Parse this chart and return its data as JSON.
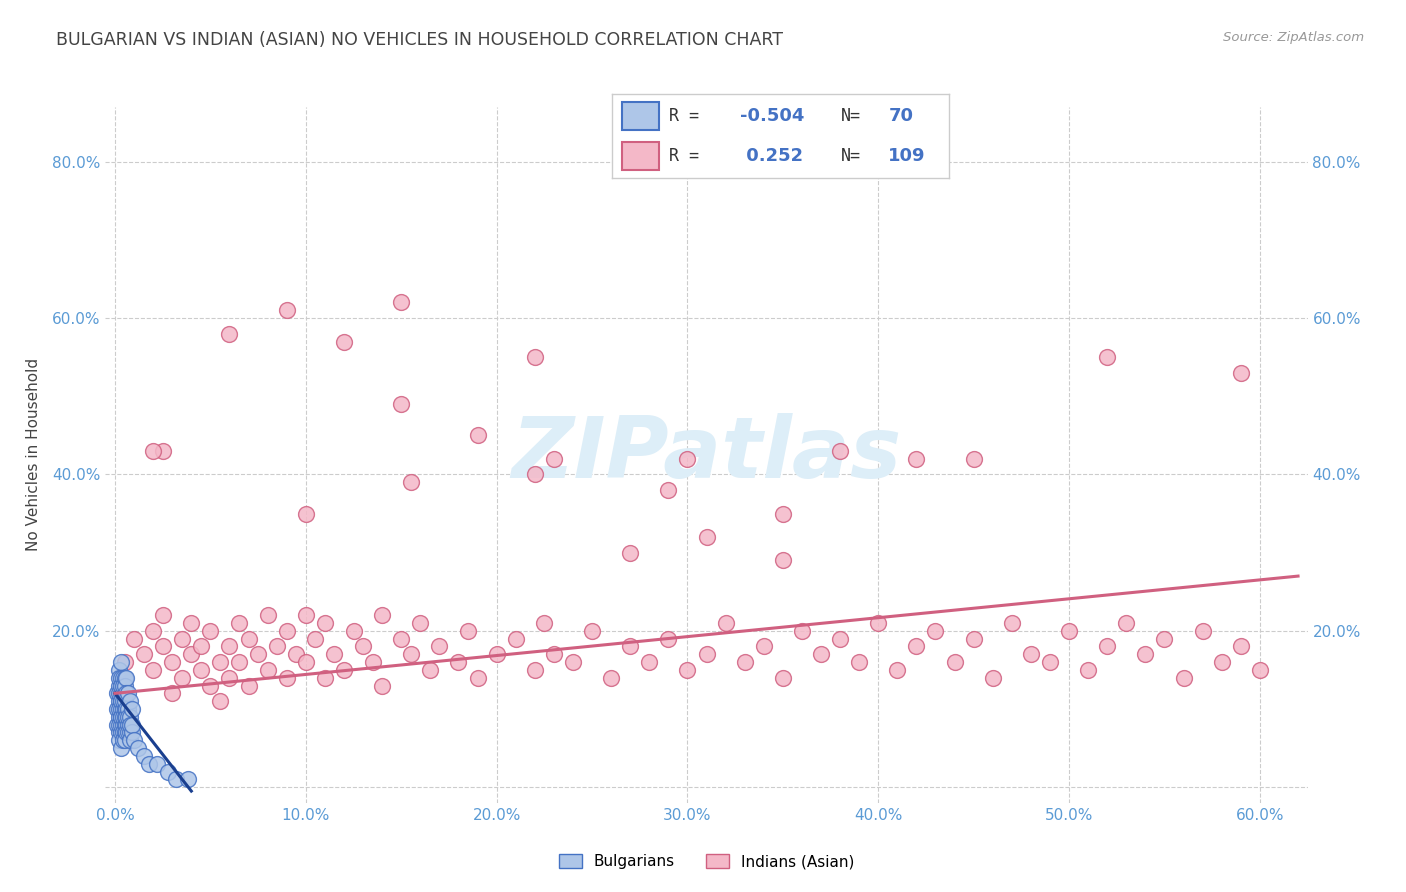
{
  "title": "BULGARIAN VS INDIAN (ASIAN) NO VEHICLES IN HOUSEHOLD CORRELATION CHART",
  "source": "Source: ZipAtlas.com",
  "ylabel": "No Vehicles in Household",
  "bg_color": "#ffffff",
  "grid_color": "#cccccc",
  "title_color": "#444444",
  "tick_label_color": "#5b9bd5",
  "xmin": -0.005,
  "xmax": 0.625,
  "ymin": -0.02,
  "ymax": 0.87,
  "xticks": [
    0.0,
    0.1,
    0.2,
    0.3,
    0.4,
    0.5,
    0.6
  ],
  "xtick_labels": [
    "0.0%",
    "10.0%",
    "20.0%",
    "30.0%",
    "40.0%",
    "50.0%",
    "60.0%"
  ],
  "yticks": [
    0.0,
    0.2,
    0.4,
    0.6,
    0.8
  ],
  "ytick_labels": [
    "",
    "20.0%",
    "40.0%",
    "60.0%",
    "80.0%"
  ],
  "legend_r_bul": "-0.504",
  "legend_n_bul": "70",
  "legend_r_ind": "0.252",
  "legend_n_ind": "109",
  "bul_face": "#aec6e8",
  "bul_edge": "#4472c4",
  "ind_face": "#f4b8c8",
  "ind_edge": "#d06080",
  "bul_line": "#1a3f8f",
  "ind_line": "#d06080",
  "watermark": "ZIPatlas",
  "watermark_color": "#ddeef8",
  "marker_size": 130,
  "bul_x": [
    0.001,
    0.001,
    0.001,
    0.002,
    0.002,
    0.002,
    0.002,
    0.002,
    0.002,
    0.002,
    0.002,
    0.002,
    0.002,
    0.003,
    0.003,
    0.003,
    0.003,
    0.003,
    0.003,
    0.003,
    0.003,
    0.003,
    0.003,
    0.003,
    0.003,
    0.004,
    0.004,
    0.004,
    0.004,
    0.004,
    0.004,
    0.004,
    0.004,
    0.004,
    0.005,
    0.005,
    0.005,
    0.005,
    0.005,
    0.005,
    0.005,
    0.005,
    0.005,
    0.006,
    0.006,
    0.006,
    0.006,
    0.006,
    0.006,
    0.007,
    0.007,
    0.007,
    0.007,
    0.007,
    0.008,
    0.008,
    0.008,
    0.008,
    0.008,
    0.009,
    0.009,
    0.009,
    0.01,
    0.012,
    0.015,
    0.018,
    0.022,
    0.028,
    0.032,
    0.038
  ],
  "bul_y": [
    0.1,
    0.08,
    0.12,
    0.15,
    0.13,
    0.11,
    0.09,
    0.07,
    0.12,
    0.14,
    0.08,
    0.1,
    0.06,
    0.16,
    0.12,
    0.09,
    0.11,
    0.07,
    0.14,
    0.08,
    0.13,
    0.1,
    0.05,
    0.09,
    0.11,
    0.14,
    0.1,
    0.12,
    0.08,
    0.09,
    0.13,
    0.07,
    0.11,
    0.06,
    0.14,
    0.1,
    0.12,
    0.08,
    0.09,
    0.13,
    0.07,
    0.11,
    0.06,
    0.14,
    0.1,
    0.08,
    0.12,
    0.07,
    0.09,
    0.12,
    0.1,
    0.08,
    0.07,
    0.09,
    0.11,
    0.07,
    0.09,
    0.06,
    0.08,
    0.1,
    0.07,
    0.08,
    0.06,
    0.05,
    0.04,
    0.03,
    0.03,
    0.02,
    0.01,
    0.01
  ],
  "ind_x": [
    0.005,
    0.01,
    0.015,
    0.02,
    0.02,
    0.025,
    0.025,
    0.03,
    0.03,
    0.035,
    0.035,
    0.04,
    0.04,
    0.045,
    0.045,
    0.05,
    0.05,
    0.055,
    0.055,
    0.06,
    0.06,
    0.065,
    0.065,
    0.07,
    0.07,
    0.075,
    0.08,
    0.08,
    0.085,
    0.09,
    0.09,
    0.095,
    0.1,
    0.1,
    0.105,
    0.11,
    0.11,
    0.115,
    0.12,
    0.125,
    0.13,
    0.135,
    0.14,
    0.14,
    0.15,
    0.155,
    0.16,
    0.165,
    0.17,
    0.18,
    0.185,
    0.19,
    0.2,
    0.21,
    0.22,
    0.225,
    0.23,
    0.24,
    0.25,
    0.26,
    0.27,
    0.28,
    0.29,
    0.3,
    0.31,
    0.32,
    0.33,
    0.34,
    0.35,
    0.36,
    0.37,
    0.38,
    0.39,
    0.4,
    0.41,
    0.42,
    0.43,
    0.44,
    0.45,
    0.46,
    0.47,
    0.48,
    0.49,
    0.5,
    0.51,
    0.52,
    0.53,
    0.54,
    0.55,
    0.56,
    0.57,
    0.58,
    0.59,
    0.6,
    0.025,
    0.06,
    0.09,
    0.12,
    0.155,
    0.19,
    0.23,
    0.27,
    0.31,
    0.35,
    0.15,
    0.22,
    0.3,
    0.38,
    0.45
  ],
  "ind_y": [
    0.16,
    0.19,
    0.17,
    0.2,
    0.15,
    0.18,
    0.22,
    0.16,
    0.12,
    0.19,
    0.14,
    0.17,
    0.21,
    0.15,
    0.18,
    0.13,
    0.2,
    0.16,
    0.11,
    0.18,
    0.14,
    0.21,
    0.16,
    0.19,
    0.13,
    0.17,
    0.22,
    0.15,
    0.18,
    0.2,
    0.14,
    0.17,
    0.22,
    0.16,
    0.19,
    0.14,
    0.21,
    0.17,
    0.15,
    0.2,
    0.18,
    0.16,
    0.22,
    0.13,
    0.19,
    0.17,
    0.21,
    0.15,
    0.18,
    0.16,
    0.2,
    0.14,
    0.17,
    0.19,
    0.15,
    0.21,
    0.17,
    0.16,
    0.2,
    0.14,
    0.18,
    0.16,
    0.19,
    0.15,
    0.17,
    0.21,
    0.16,
    0.18,
    0.14,
    0.2,
    0.17,
    0.19,
    0.16,
    0.21,
    0.15,
    0.18,
    0.2,
    0.16,
    0.19,
    0.14,
    0.21,
    0.17,
    0.16,
    0.2,
    0.15,
    0.18,
    0.21,
    0.17,
    0.19,
    0.14,
    0.2,
    0.16,
    0.18,
    0.15,
    0.43,
    0.58,
    0.61,
    0.57,
    0.39,
    0.45,
    0.42,
    0.3,
    0.32,
    0.29,
    0.49,
    0.4,
    0.42,
    0.43,
    0.42
  ],
  "ind_outlier_x": [
    0.02,
    0.1,
    0.15,
    0.22,
    0.29,
    0.35,
    0.42,
    0.52,
    0.59
  ],
  "ind_outlier_y": [
    0.43,
    0.35,
    0.62,
    0.55,
    0.38,
    0.35,
    0.42,
    0.55,
    0.53
  ]
}
